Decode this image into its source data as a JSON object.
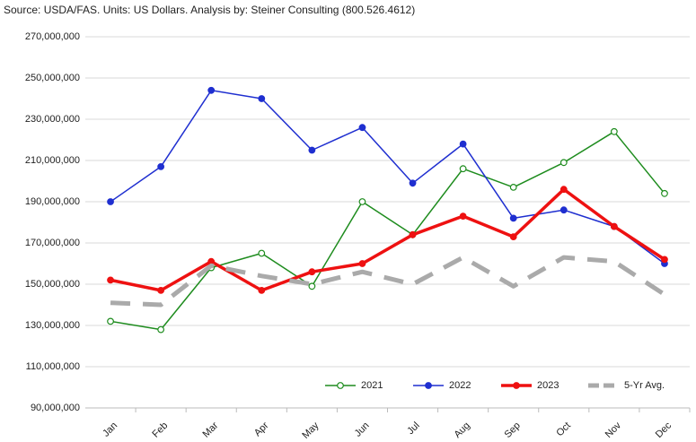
{
  "chart_data": {
    "type": "line",
    "title": "Source: USDA/FAS.  Units: US Dollars.  Analysis by: Steiner Consulting (800.526.4612)",
    "categories": [
      "Jan",
      "Feb",
      "Mar",
      "Apr",
      "May",
      "Jun",
      "Jul",
      "Aug",
      "Sep",
      "Oct",
      "Nov",
      "Dec"
    ],
    "series": [
      {
        "name": "2021",
        "color": "#1e8c1e",
        "marker": "open",
        "line_width": 1.5,
        "dashed": false,
        "values": [
          132000000,
          128000000,
          158000000,
          165000000,
          149000000,
          190000000,
          174000000,
          206000000,
          197000000,
          209000000,
          224000000,
          194000000
        ]
      },
      {
        "name": "2022",
        "color": "#1f2fd0",
        "marker": "filled",
        "line_width": 1.5,
        "dashed": false,
        "values": [
          190000000,
          207000000,
          244000000,
          240000000,
          215000000,
          226000000,
          199000000,
          218000000,
          182000000,
          186000000,
          178000000,
          160000000
        ]
      },
      {
        "name": "2023",
        "color": "#ee1111",
        "marker": "filled",
        "line_width": 3.5,
        "dashed": false,
        "values": [
          152000000,
          147000000,
          161000000,
          147000000,
          156000000,
          160000000,
          174000000,
          183000000,
          173000000,
          196000000,
          178000000,
          162000000
        ]
      },
      {
        "name": "5-Yr Avg.",
        "color": "#aaaaaa",
        "marker": "none",
        "line_width": 5,
        "dashed": true,
        "values": [
          141000000,
          140000000,
          159000000,
          154000000,
          150000000,
          156000000,
          150000000,
          163000000,
          149000000,
          163000000,
          161000000,
          145000000
        ]
      }
    ],
    "ylim": [
      90000000,
      270000000
    ],
    "yticks": [
      {
        "value": 90000000,
        "label": "90,000,000"
      },
      {
        "value": 110000000,
        "label": "110,000,000"
      },
      {
        "value": 130000000,
        "label": "130,000,000"
      },
      {
        "value": 150000000,
        "label": "150,000,000"
      },
      {
        "value": 170000000,
        "label": "170,000,000"
      },
      {
        "value": 190000000,
        "label": "190,000,000"
      },
      {
        "value": 210000000,
        "label": "210,000,000"
      },
      {
        "value": 230000000,
        "label": "230,000,000"
      },
      {
        "value": 250000000,
        "label": "250,000,000"
      },
      {
        "value": 270000000,
        "label": "270,000,000"
      }
    ],
    "grid": true,
    "legend": "lower right"
  }
}
